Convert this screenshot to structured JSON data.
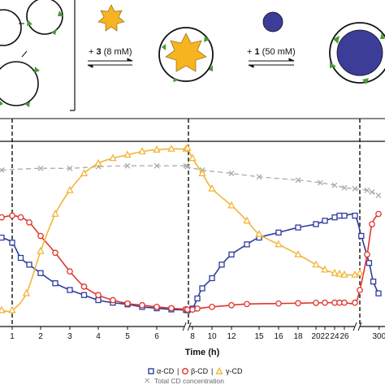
{
  "scheme": {
    "step1_label": "+ 3 (8 mM)",
    "step1_number": "3",
    "step1_conc": "(8 mM)",
    "step2_label": "+ 1 (50 mM)",
    "step2_number": "1",
    "step2_conc": "(50 mM)",
    "colors": {
      "star": "#f7b320",
      "disc": "#3c3c99",
      "green": "#4a9a3a"
    }
  },
  "chart_data": {
    "type": "line",
    "xlabel": "Time (h)",
    "ylabel": "",
    "x_segments": [
      {
        "ticks": [
          "1",
          "2",
          "3",
          "4",
          "5",
          "6"
        ],
        "range": [
          0.7,
          7.0
        ]
      },
      {
        "ticks": [
          "8",
          "10",
          "12",
          "15",
          "16",
          "18",
          "20",
          "22",
          "24",
          "26"
        ],
        "range": [
          7.5,
          27.5
        ]
      },
      {
        "ticks": [
          "300"
        ],
        "range": [
          28.5,
          31.0
        ]
      }
    ],
    "event_markers_h": [
      1,
      7.8,
      27.5
    ],
    "ylim": [
      0,
      1
    ],
    "series": [
      {
        "name": "α-CD",
        "color": "#2f3d9c",
        "marker": "square",
        "points": [
          [
            0.7,
            0.43
          ],
          [
            1.0,
            0.4
          ],
          [
            1.3,
            0.31
          ],
          [
            1.6,
            0.27
          ],
          [
            2.0,
            0.22
          ],
          [
            2.5,
            0.16
          ],
          [
            3.0,
            0.12
          ],
          [
            3.5,
            0.09
          ],
          [
            4.0,
            0.06
          ],
          [
            4.5,
            0.045
          ],
          [
            5.0,
            0.035
          ],
          [
            5.5,
            0.02
          ],
          [
            6.0,
            0.012
          ],
          [
            6.5,
            0.005
          ],
          [
            7.0,
            0.002
          ],
          [
            7.5,
            0.0
          ],
          [
            8.0,
            0.01
          ],
          [
            8.5,
            0.07
          ],
          [
            9.0,
            0.13
          ],
          [
            10.0,
            0.19
          ],
          [
            11.0,
            0.27
          ],
          [
            12.0,
            0.33
          ],
          [
            14.0,
            0.39
          ],
          [
            15.0,
            0.43
          ],
          [
            16.0,
            0.46
          ],
          [
            18.0,
            0.49
          ],
          [
            20.0,
            0.51
          ],
          [
            22.0,
            0.53
          ],
          [
            24.0,
            0.55
          ],
          [
            25.0,
            0.56
          ],
          [
            26.0,
            0.56
          ],
          [
            27.0,
            0.56
          ],
          [
            27.6,
            0.44
          ],
          [
            28.2,
            0.28
          ],
          [
            28.6,
            0.17
          ],
          [
            29.0,
            0.1
          ]
        ]
      },
      {
        "name": "β-CD",
        "color": "#e0342c",
        "marker": "circle",
        "points": [
          [
            0.7,
            0.55
          ],
          [
            1.0,
            0.56
          ],
          [
            1.3,
            0.55
          ],
          [
            1.6,
            0.52
          ],
          [
            2.0,
            0.44
          ],
          [
            2.5,
            0.34
          ],
          [
            3.0,
            0.23
          ],
          [
            3.5,
            0.14
          ],
          [
            4.0,
            0.09
          ],
          [
            4.5,
            0.06
          ],
          [
            5.0,
            0.04
          ],
          [
            5.5,
            0.03
          ],
          [
            6.0,
            0.02
          ],
          [
            6.5,
            0.012
          ],
          [
            7.0,
            0.006
          ],
          [
            7.5,
            0.004
          ],
          [
            8.0,
            0.004
          ],
          [
            8.5,
            0.01
          ],
          [
            10.0,
            0.02
          ],
          [
            12.0,
            0.03
          ],
          [
            14.0,
            0.037
          ],
          [
            16.0,
            0.04
          ],
          [
            18.0,
            0.042
          ],
          [
            20.0,
            0.044
          ],
          [
            22.0,
            0.045
          ],
          [
            24.0,
            0.045
          ],
          [
            25.0,
            0.045
          ],
          [
            26.0,
            0.045
          ],
          [
            27.0,
            0.045
          ],
          [
            27.5,
            0.12
          ],
          [
            28.0,
            0.33
          ],
          [
            28.5,
            0.51
          ],
          [
            29.0,
            0.57
          ]
        ]
      },
      {
        "name": "γ-CD",
        "color": "#f2b53a",
        "marker": "triangle",
        "points": [
          [
            0.7,
            0.0
          ],
          [
            1.0,
            0.0
          ],
          [
            1.5,
            0.1
          ],
          [
            2.0,
            0.35
          ],
          [
            2.5,
            0.57
          ],
          [
            3.0,
            0.71
          ],
          [
            3.5,
            0.81
          ],
          [
            4.0,
            0.87
          ],
          [
            4.5,
            0.9
          ],
          [
            5.0,
            0.92
          ],
          [
            5.5,
            0.94
          ],
          [
            6.0,
            0.95
          ],
          [
            6.5,
            0.955
          ],
          [
            7.0,
            0.955
          ],
          [
            7.5,
            0.96
          ],
          [
            8.0,
            0.9
          ],
          [
            9.0,
            0.81
          ],
          [
            10.0,
            0.72
          ],
          [
            12.0,
            0.62
          ],
          [
            14.0,
            0.53
          ],
          [
            15.0,
            0.45
          ],
          [
            16.0,
            0.39
          ],
          [
            18.0,
            0.33
          ],
          [
            20.0,
            0.27
          ],
          [
            22.0,
            0.24
          ],
          [
            24.0,
            0.22
          ],
          [
            25.0,
            0.215
          ],
          [
            26.0,
            0.21
          ],
          [
            27.0,
            0.21
          ],
          [
            27.5,
            0.22
          ]
        ]
      },
      {
        "name": "Total CD concentration",
        "color": "#aaaaaa",
        "marker": "x",
        "dashed": true,
        "points": [
          [
            0.7,
            0.83
          ],
          [
            2.0,
            0.84
          ],
          [
            3.0,
            0.84
          ],
          [
            4.0,
            0.85
          ],
          [
            5.0,
            0.855
          ],
          [
            6.0,
            0.855
          ],
          [
            7.0,
            0.855
          ],
          [
            7.5,
            0.85
          ],
          [
            9.0,
            0.83
          ],
          [
            12.0,
            0.81
          ],
          [
            15.0,
            0.79
          ],
          [
            18.0,
            0.77
          ],
          [
            21.0,
            0.755
          ],
          [
            24.0,
            0.74
          ],
          [
            26.0,
            0.725
          ],
          [
            27.0,
            0.72
          ],
          [
            28.0,
            0.71
          ],
          [
            28.5,
            0.7
          ],
          [
            29.0,
            0.68
          ]
        ]
      }
    ],
    "legend": {
      "items": [
        "α-CD",
        "β-CD",
        "γ-CD"
      ],
      "total_label": "Total CD concentration",
      "placement": "bottom-center"
    }
  }
}
